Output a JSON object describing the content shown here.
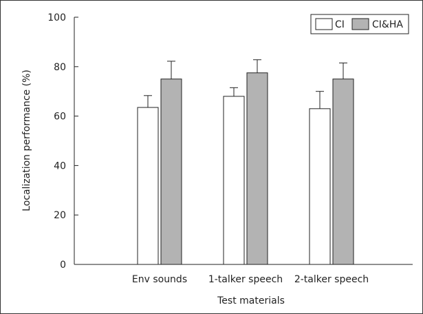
{
  "chart_data": {
    "type": "bar",
    "title": "",
    "xlabel": "Test materials",
    "ylabel": "Localization performance (%)",
    "categories": [
      "Env sounds",
      "1-talker speech",
      "2-talker speech"
    ],
    "series": [
      {
        "name": "CI",
        "color": "#ffffff",
        "values": [
          63.5,
          68.0,
          63.0
        ],
        "error_upper": [
          4.8,
          3.5,
          7.0
        ]
      },
      {
        "name": "CI&HA",
        "color": "#b3b3b3",
        "values": [
          75.0,
          77.5,
          75.0
        ],
        "error_upper": [
          7.2,
          5.3,
          6.5
        ]
      }
    ],
    "ylim": [
      0,
      100
    ],
    "yticks": [
      0,
      20,
      40,
      60,
      80,
      100
    ],
    "grid": false,
    "legend_position": "top-right",
    "error_bars": "upper"
  }
}
